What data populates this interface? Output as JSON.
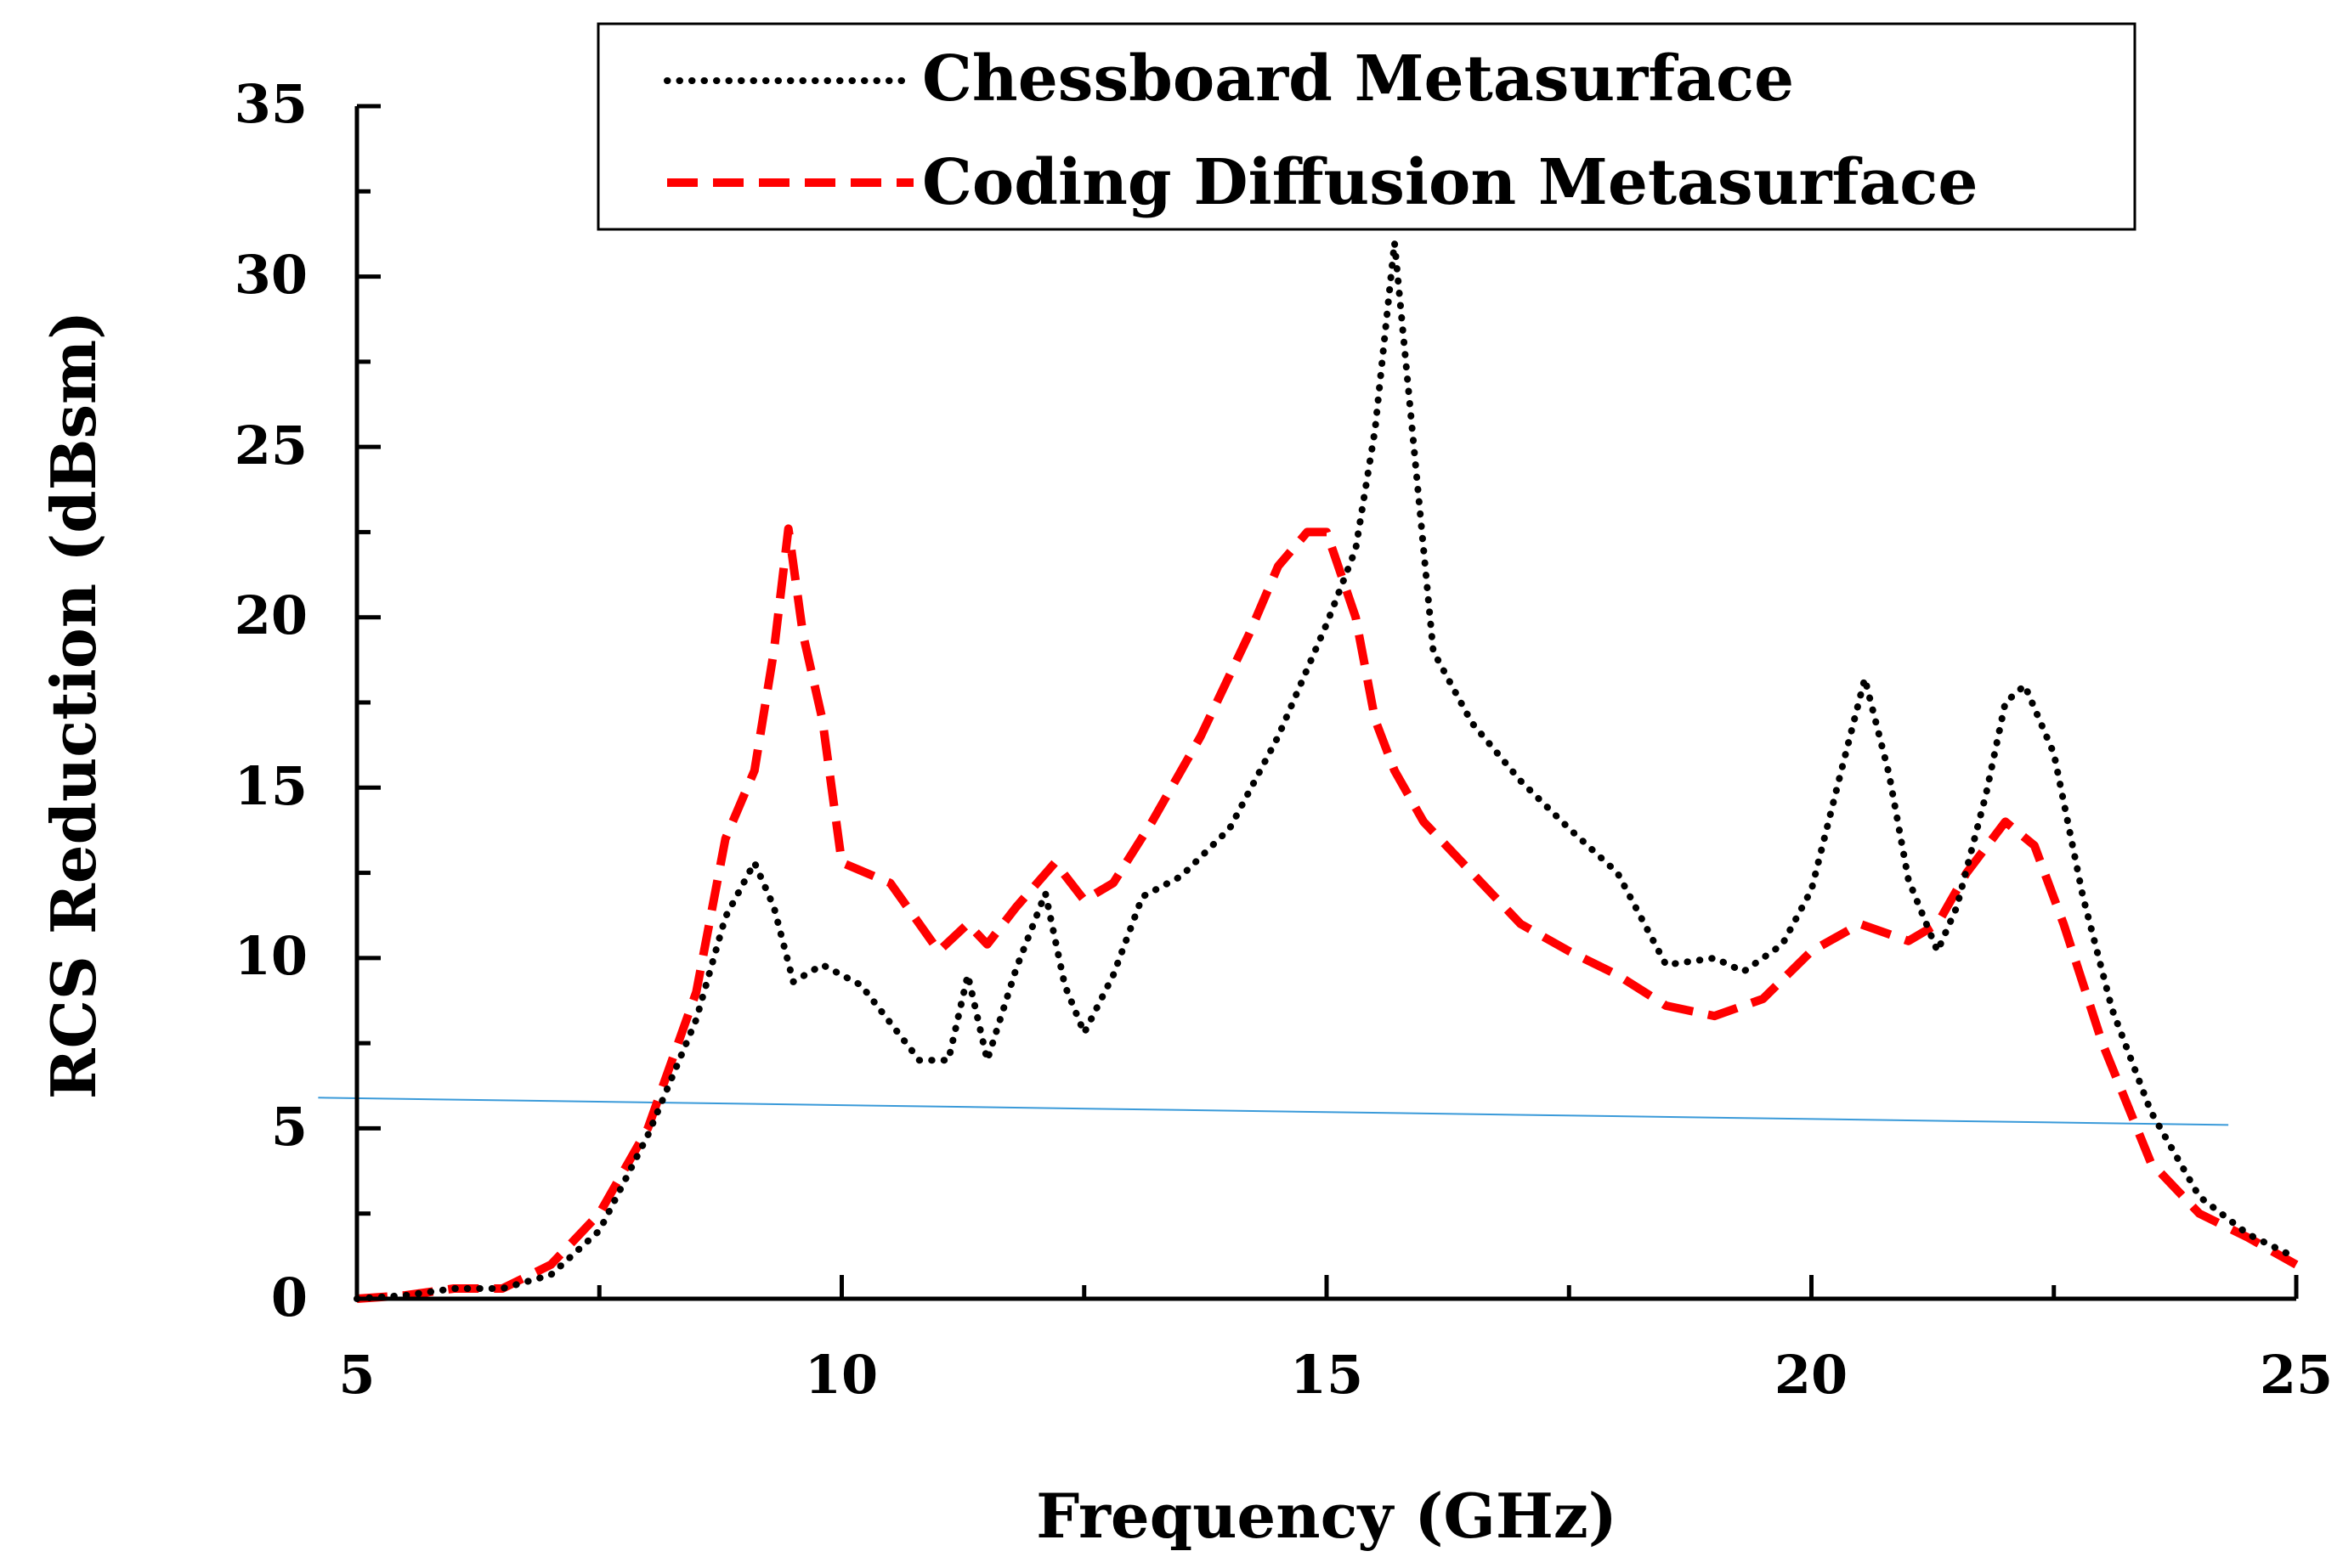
{
  "chart_data": {
    "type": "line",
    "title": "",
    "xlabel": "Frequency (GHz)",
    "ylabel": "RCS Reduction (dBsm)",
    "xlim": [
      5,
      25
    ],
    "ylim": [
      0,
      35
    ],
    "xticks": [
      "5",
      "10",
      "15",
      "20",
      "25"
    ],
    "yticks": [
      "0",
      "5",
      "10",
      "15",
      "20",
      "25",
      "30",
      "35"
    ],
    "grid": false,
    "legend_position": "top-right",
    "series": [
      {
        "name": "Chessboard Metasurface",
        "style": "dotted",
        "color": "#000000",
        "x": [
          5,
          5.5,
          6,
          6.5,
          7,
          7.5,
          8,
          8.5,
          8.8,
          9.1,
          9.3,
          9.5,
          9.8,
          10.2,
          10.5,
          10.8,
          11.1,
          11.3,
          11.5,
          11.8,
          12.1,
          12.3,
          12.5,
          12.8,
          13.1,
          13.5,
          14,
          14.5,
          15,
          15.3,
          15.5,
          15.7,
          15.9,
          16.1,
          16.5,
          17,
          17.5,
          18,
          18.5,
          19,
          19.3,
          19.7,
          20,
          20.3,
          20.55,
          20.8,
          21,
          21.3,
          21.5,
          21.8,
          22,
          22.2,
          22.5,
          22.8,
          23.1,
          23.5,
          24,
          24.5,
          25
        ],
        "values": [
          0,
          0.1,
          0.3,
          0.3,
          0.7,
          2,
          4.8,
          8.2,
          11.2,
          12.8,
          11.5,
          9.3,
          9.8,
          9.2,
          8.1,
          7.0,
          7.0,
          9.5,
          7.0,
          9.7,
          11.9,
          9.2,
          7.8,
          9.5,
          11.8,
          12.4,
          13.8,
          16.5,
          19.8,
          22,
          25.5,
          31.0,
          25,
          19.0,
          16.9,
          15.2,
          13.8,
          12.5,
          9.8,
          10.0,
          9.6,
          10.4,
          12.0,
          15.4,
          18.2,
          15.4,
          12.3,
          10.2,
          11.5,
          14.8,
          17.5,
          18.0,
          16.0,
          11.8,
          8.5,
          5.5,
          3.0,
          1.9,
          1.2
        ]
      },
      {
        "name": "Coding Diffusion Metasurface",
        "style": "dashed",
        "color": "#ff0000",
        "x": [
          5,
          5.5,
          6,
          6.5,
          7,
          7.5,
          8,
          8.5,
          8.8,
          9.1,
          9.3,
          9.45,
          9.6,
          9.8,
          10,
          10.5,
          11,
          11.3,
          11.5,
          11.8,
          12.2,
          12.5,
          12.8,
          13.2,
          13.7,
          14.2,
          14.5,
          14.8,
          15,
          15.3,
          15.5,
          15.7,
          16,
          16.5,
          17,
          17.5,
          18,
          18.5,
          19,
          19.5,
          20,
          20.5,
          21,
          21.3,
          21.6,
          22,
          22.3,
          22.6,
          23,
          23.5,
          24,
          24.5,
          25
        ],
        "values": [
          0,
          0.1,
          0.3,
          0.3,
          1.0,
          2.5,
          5.0,
          9.0,
          13.5,
          15.5,
          19.0,
          22.6,
          19.5,
          17.0,
          12.8,
          12.2,
          10.2,
          11.0,
          10.4,
          11.5,
          12.8,
          11.7,
          12.2,
          14.0,
          16.5,
          19.5,
          21.5,
          22.5,
          22.5,
          20.0,
          17.0,
          15.5,
          14.0,
          12.5,
          11.0,
          10.2,
          9.5,
          8.6,
          8.3,
          8.8,
          10.2,
          11.0,
          10.5,
          11.0,
          12.5,
          14.0,
          13.3,
          11.0,
          7.5,
          4.0,
          2.5,
          1.8,
          1.0
        ]
      },
      {
        "name": "reference line",
        "style": "solid-thin",
        "color": "#3a9ad9",
        "x": [
          4.6,
          24.3
        ],
        "values": [
          5.9,
          5.1
        ]
      }
    ]
  }
}
